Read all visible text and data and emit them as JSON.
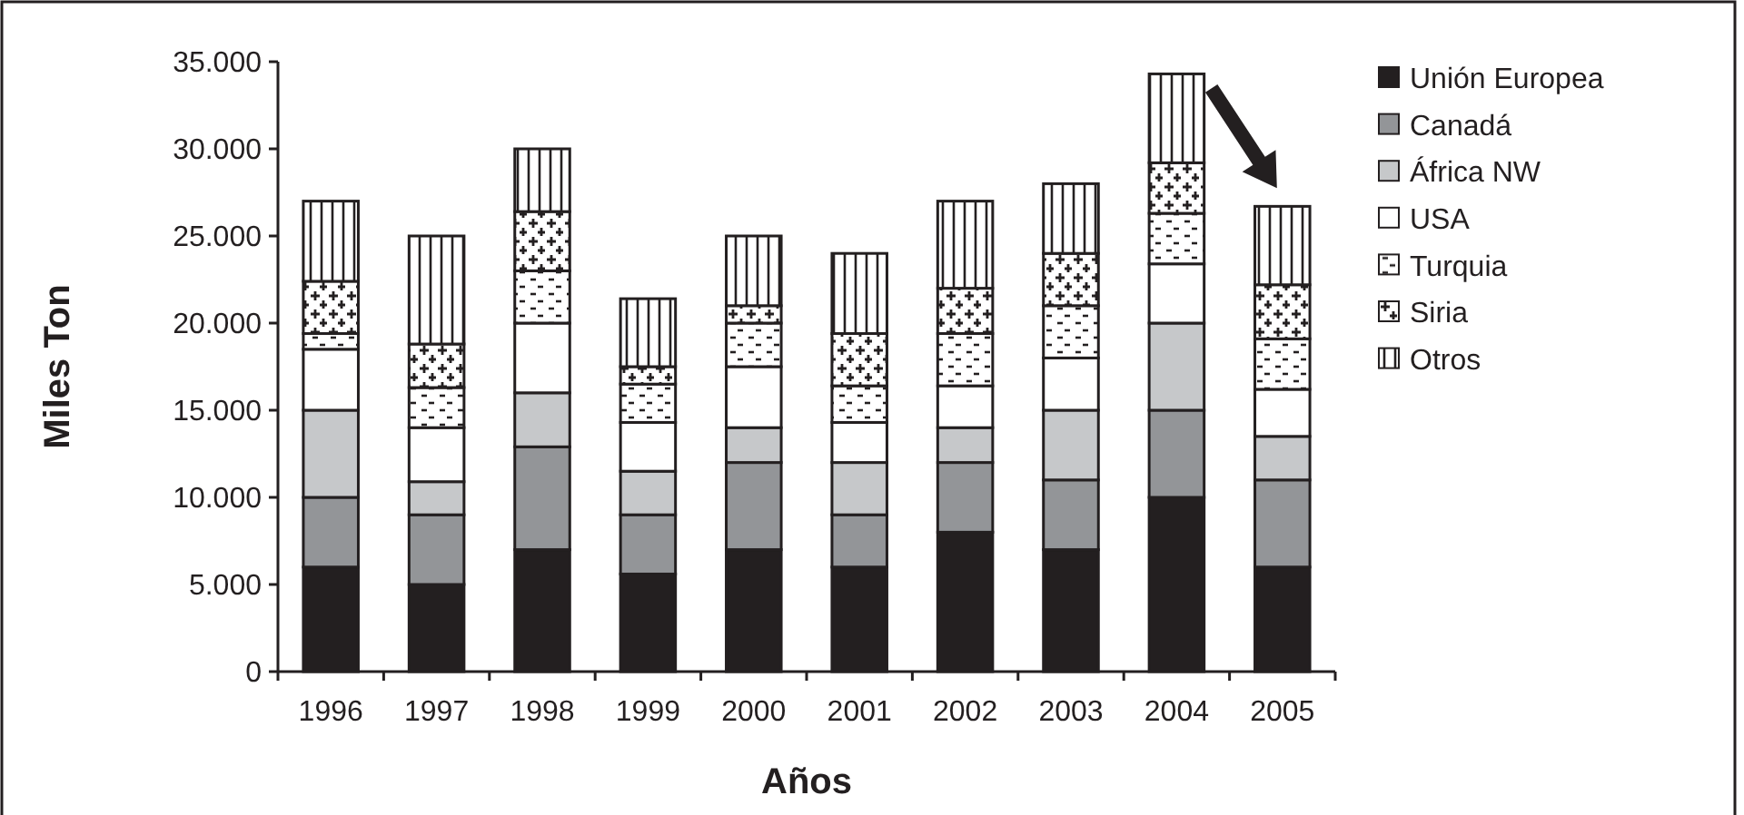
{
  "chart_data": {
    "type": "bar",
    "stacked": true,
    "xlabel": "Años",
    "ylabel": "Miles Ton",
    "categories": [
      "1996",
      "1997",
      "1998",
      "1999",
      "2000",
      "2001",
      "2002",
      "2003",
      "2004",
      "2005"
    ],
    "series": [
      {
        "name": "Unión Europea",
        "color": "#231f20",
        "values": [
          6000,
          5000,
          7000,
          5600,
          7000,
          6000,
          8000,
          7000,
          10000,
          6000
        ]
      },
      {
        "name": "Canadá",
        "color": "#939598",
        "values": [
          4000,
          4000,
          5900,
          3400,
          5000,
          3000,
          4000,
          4000,
          5000,
          5000
        ]
      },
      {
        "name": "África NW",
        "color": "#c6c8ca",
        "values": [
          5000,
          1900,
          3100,
          2500,
          2000,
          3000,
          2000,
          4000,
          5000,
          2500
        ]
      },
      {
        "name": "USA",
        "color": "#ffffff",
        "values": [
          3500,
          3100,
          4000,
          2800,
          3500,
          2300,
          2400,
          3000,
          3400,
          2700
        ]
      },
      {
        "name": "Turquia",
        "color": "#ffffff",
        "values": [
          900,
          2300,
          3000,
          2200,
          2500,
          2100,
          3000,
          3000,
          2900,
          2900
        ]
      },
      {
        "name": "Siria",
        "color": "#ffffff",
        "values": [
          3000,
          2500,
          3400,
          1000,
          1000,
          3000,
          2600,
          3000,
          2900,
          3100
        ]
      },
      {
        "name": "Otros",
        "color": "#ffffff",
        "values": [
          4600,
          6200,
          3600,
          3900,
          4000,
          4600,
          5000,
          4000,
          5100,
          4500
        ]
      }
    ],
    "ylim": [
      0,
      35000
    ],
    "yticks": [
      {
        "value": 0,
        "label": "0"
      },
      {
        "value": 5000,
        "label": "5.000"
      },
      {
        "value": 10000,
        "label": "10.000"
      },
      {
        "value": 15000,
        "label": "15.000"
      },
      {
        "value": 20000,
        "label": "20.000"
      },
      {
        "value": 25000,
        "label": "25.000"
      },
      {
        "value": 30000,
        "label": "30.000"
      },
      {
        "value": 35000,
        "label": "35.000"
      }
    ],
    "legend": "right",
    "grid": false
  }
}
